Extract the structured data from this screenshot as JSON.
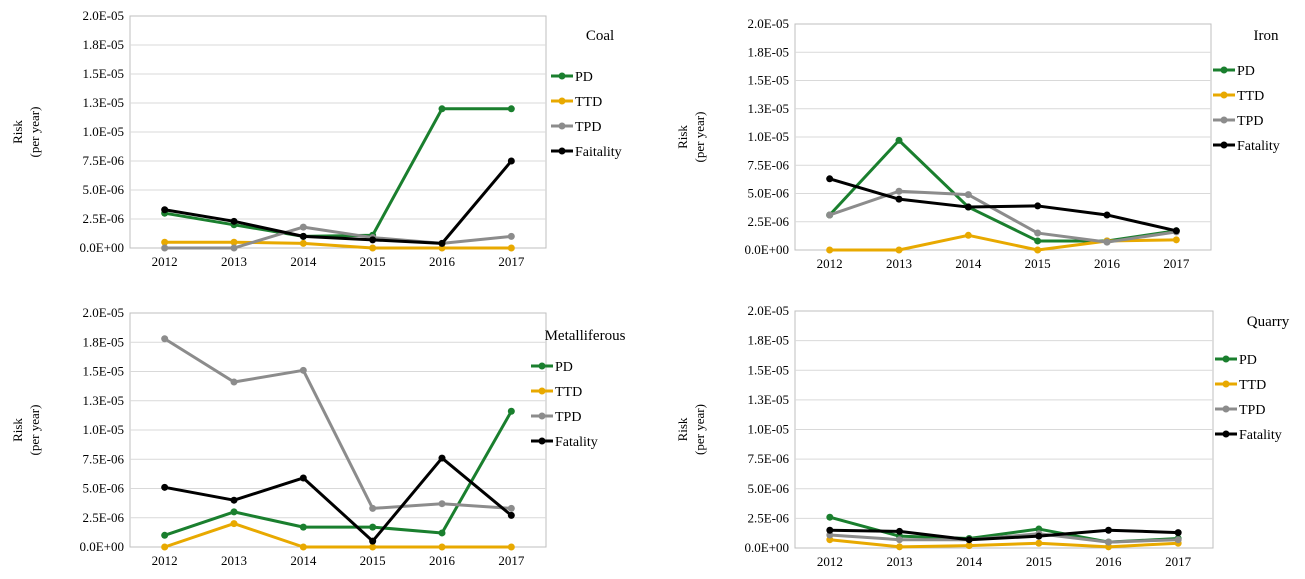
{
  "colors": {
    "PD": "#1a7f2e",
    "TTD": "#e8a900",
    "TPD": "#8c8c8c",
    "Faitality": "#000000",
    "Fatality": "#000000",
    "grid": "#d9d9d9",
    "axis": "#bfbfbf"
  },
  "chart_data": [
    {
      "type": "line",
      "title": "Coal",
      "ylabel": [
        "Risk",
        "(per year)"
      ],
      "x": [
        "2012",
        "2013",
        "2014",
        "2015",
        "2016",
        "2017"
      ],
      "ylim": [
        0,
        2e-05
      ],
      "yticks": [
        "0.0E+00",
        "2.5E-06",
        "5.0E-06",
        "7.5E-06",
        "1.0E-05",
        "1.3E-05",
        "1.5E-05",
        "1.8E-05",
        "2.0E-05"
      ],
      "legend_position": "right",
      "series": [
        {
          "name": "PD",
          "values": [
            3e-06,
            2e-06,
            1e-06,
            1.1e-06,
            1.2e-05,
            1.2e-05
          ]
        },
        {
          "name": "TTD",
          "values": [
            5e-07,
            5e-07,
            4e-07,
            0,
            0,
            0
          ]
        },
        {
          "name": "TPD",
          "values": [
            0,
            0,
            1.8e-06,
            9e-07,
            4e-07,
            1e-06
          ]
        },
        {
          "name": "Faitality",
          "values": [
            3.3e-06,
            2.3e-06,
            1e-06,
            7e-07,
            4e-07,
            7.5e-06
          ]
        }
      ]
    },
    {
      "type": "line",
      "title": "Iron",
      "ylabel": [
        "Risk",
        "(per year)"
      ],
      "x": [
        "2012",
        "2013",
        "2014",
        "2015",
        "2016",
        "2017"
      ],
      "ylim": [
        0,
        2e-05
      ],
      "yticks": [
        "0.0E+00",
        "2.5E-06",
        "5.0E-06",
        "7.5E-06",
        "1.0E-05",
        "1.3E-05",
        "1.5E-05",
        "1.8E-05",
        "2.0E-05"
      ],
      "legend_position": "right",
      "series": [
        {
          "name": "PD",
          "values": [
            3.1e-06,
            9.7e-06,
            3.8e-06,
            8e-07,
            8e-07,
            1.7e-06
          ]
        },
        {
          "name": "TTD",
          "values": [
            0,
            0,
            1.3e-06,
            0,
            8e-07,
            9e-07
          ]
        },
        {
          "name": "TPD",
          "values": [
            3.1e-06,
            5.2e-06,
            4.9e-06,
            1.5e-06,
            7e-07,
            1.6e-06
          ]
        },
        {
          "name": "Fatality",
          "values": [
            6.3e-06,
            4.5e-06,
            3.8e-06,
            3.9e-06,
            3.1e-06,
            1.7e-06
          ]
        }
      ]
    },
    {
      "type": "line",
      "title": "Metalliferous",
      "ylabel": [
        "Risk",
        "(per year)"
      ],
      "x": [
        "2012",
        "2013",
        "2014",
        "2015",
        "2016",
        "2017"
      ],
      "ylim": [
        0,
        2e-05
      ],
      "yticks": [
        "0.0E+00",
        "2.5E-06",
        "5.0E-06",
        "7.5E-06",
        "1.0E-05",
        "1.3E-05",
        "1.5E-05",
        "1.8E-05",
        "2.0E-05"
      ],
      "legend_position": "right",
      "series": [
        {
          "name": "PD",
          "values": [
            1e-06,
            3e-06,
            1.7e-06,
            1.7e-06,
            1.2e-06,
            1.16e-05
          ]
        },
        {
          "name": "TTD",
          "values": [
            0,
            2e-06,
            0,
            0,
            0,
            0
          ]
        },
        {
          "name": "TPD",
          "values": [
            1.78e-05,
            1.41e-05,
            1.51e-05,
            3.3e-06,
            3.7e-06,
            3.3e-06
          ]
        },
        {
          "name": "Fatality",
          "values": [
            5.1e-06,
            4e-06,
            5.9e-06,
            5e-07,
            7.6e-06,
            2.7e-06
          ]
        }
      ]
    },
    {
      "type": "line",
      "title": "Quarry",
      "ylabel": [
        "Risk",
        "(per year)"
      ],
      "x": [
        "2012",
        "2013",
        "2014",
        "2015",
        "2016",
        "2017"
      ],
      "ylim": [
        0,
        2e-05
      ],
      "yticks": [
        "0.0E+00",
        "2.5E-06",
        "5.0E-06",
        "7.5E-06",
        "1.0E-05",
        "1.3E-05",
        "1.5E-05",
        "1.8E-05",
        "2.0E-05"
      ],
      "legend_position": "right",
      "series": [
        {
          "name": "PD",
          "values": [
            2.6e-06,
            1e-06,
            8e-07,
            1.6e-06,
            5e-07,
            8e-07
          ]
        },
        {
          "name": "TTD",
          "values": [
            7e-07,
            1e-07,
            2e-07,
            4e-07,
            1e-07,
            4e-07
          ]
        },
        {
          "name": "TPD",
          "values": [
            1.1e-06,
            7e-07,
            7e-07,
            1.2e-06,
            5e-07,
            7e-07
          ]
        },
        {
          "name": "Fatality",
          "values": [
            1.5e-06,
            1.4e-06,
            7e-07,
            1e-06,
            1.5e-06,
            1.3e-06
          ]
        }
      ]
    }
  ]
}
